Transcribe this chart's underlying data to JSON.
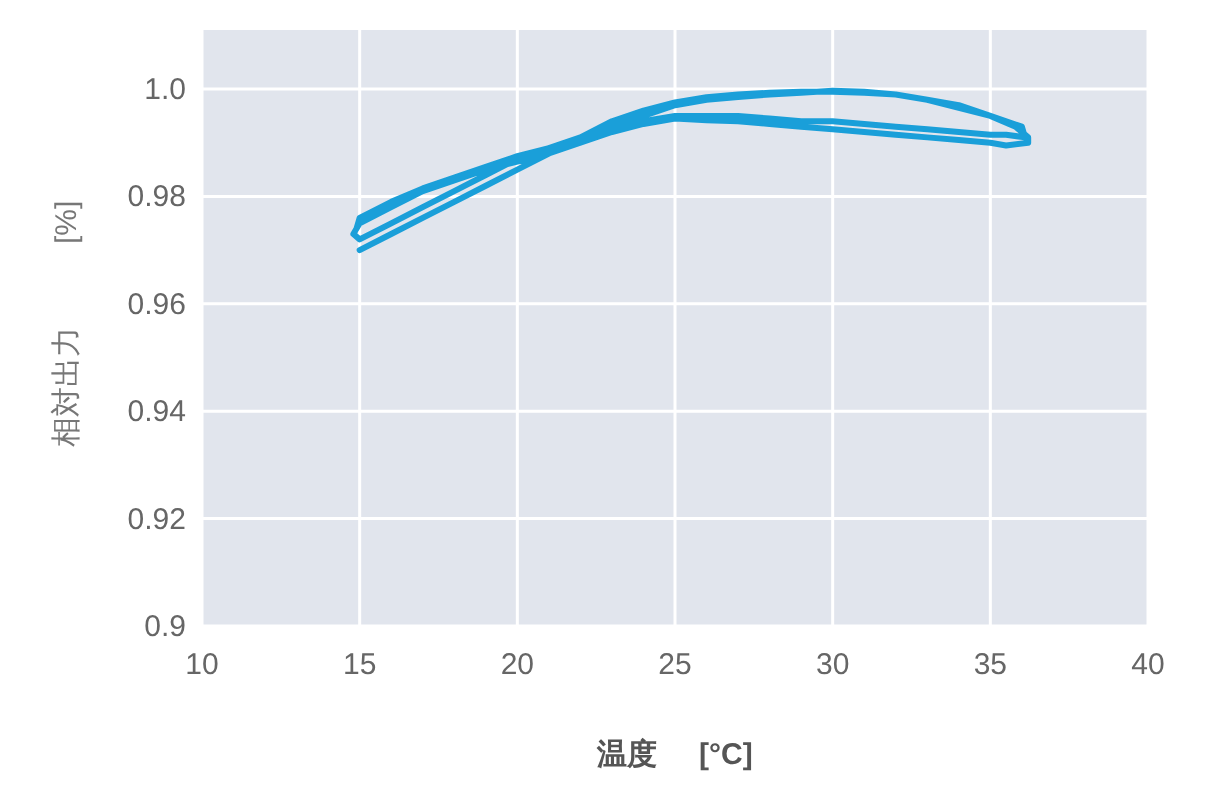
{
  "chart_data": {
    "type": "line",
    "xlabel": "温度     [°C]",
    "ylabel": "相対出力          [%]",
    "xlim": [
      10,
      40
    ],
    "xticks": [
      10,
      15,
      20,
      25,
      30,
      35,
      40
    ],
    "ylim": [
      0.9,
      1.011
    ],
    "yticks": [
      {
        "value": 0.9,
        "label": "0.9"
      },
      0.92,
      0.94,
      0.96,
      0.98,
      {
        "value": 1.0,
        "label": "1.0"
      }
    ],
    "grid": true,
    "line_style": "solid",
    "marker": "none",
    "series": [
      {
        "color": "#1a9fd9",
        "x": [
          15,
          16,
          17,
          18,
          19,
          20,
          21,
          22,
          23,
          24,
          25,
          26,
          27,
          28,
          29,
          30,
          31,
          32,
          33,
          34,
          35,
          35.8,
          36.2,
          36.2,
          35.5,
          35,
          34,
          33,
          32,
          31,
          30,
          29,
          28,
          27,
          26,
          25,
          24,
          23,
          22,
          21,
          20,
          19,
          18,
          17,
          16,
          15,
          14.8,
          15,
          16,
          17,
          18,
          19,
          20,
          21,
          22,
          23,
          24,
          25,
          26,
          27,
          28,
          29,
          30,
          31,
          32,
          33,
          34,
          35,
          36,
          36.1,
          35.5,
          35,
          34,
          33,
          32,
          31,
          30,
          29,
          28,
          27,
          26,
          25,
          24,
          23,
          22,
          21,
          20,
          19,
          18,
          17,
          16,
          15,
          14.9
        ],
        "values": [
          0.97,
          0.973,
          0.976,
          0.979,
          0.982,
          0.985,
          0.988,
          0.991,
          0.994,
          0.996,
          0.9975,
          0.9985,
          0.999,
          0.9993,
          0.9995,
          0.9995,
          0.9993,
          0.999,
          0.998,
          0.997,
          0.995,
          0.993,
          0.991,
          0.99,
          0.9895,
          0.99,
          0.9905,
          0.991,
          0.9915,
          0.992,
          0.9925,
          0.993,
          0.9935,
          0.994,
          0.9942,
          0.9945,
          0.9935,
          0.992,
          0.99,
          0.988,
          0.9865,
          0.985,
          0.983,
          0.981,
          0.978,
          0.975,
          0.973,
          0.972,
          0.975,
          0.978,
          0.981,
          0.984,
          0.987,
          0.989,
          0.991,
          0.993,
          0.995,
          0.997,
          0.998,
          0.9985,
          0.999,
          0.9993,
          0.9997,
          0.9995,
          0.999,
          0.998,
          0.9965,
          0.995,
          0.993,
          0.991,
          0.9915,
          0.9915,
          0.992,
          0.9925,
          0.993,
          0.9935,
          0.994,
          0.994,
          0.9945,
          0.995,
          0.995,
          0.995,
          0.994,
          0.992,
          0.99,
          0.989,
          0.9875,
          0.9855,
          0.9835,
          0.9815,
          0.979,
          0.976,
          0.974
        ]
      }
    ]
  }
}
